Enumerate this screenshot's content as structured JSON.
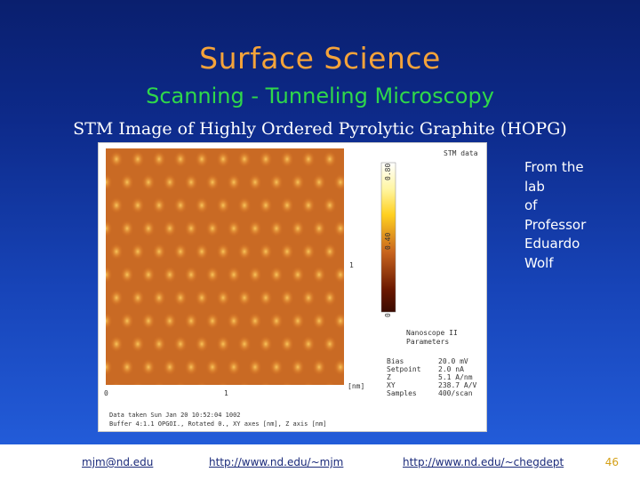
{
  "slide": {
    "title": "Surface Science",
    "subtitle": "Scanning - Tunneling Microscopy",
    "caption": "STM Image of Highly Ordered Pyrolytic Graphite (HOPG)"
  },
  "stm_image": {
    "header_label": "STM data",
    "colorbar_ticks": [
      "0.80",
      "0.40",
      "0"
    ],
    "x_axis_ticks": [
      "0",
      "1",
      "[nm]"
    ],
    "y_axis_tick": "1",
    "instrument": [
      "Nanoscope II",
      "Parameters"
    ],
    "params": [
      {
        "label": "Bias",
        "value": "20.0 mV"
      },
      {
        "label": "Setpoint",
        "value": "2.0 nA"
      },
      {
        "label": "Z",
        "value": "5.1 A/nm"
      },
      {
        "label": "XY",
        "value": "238.7 A/V"
      },
      {
        "label": "Samples",
        "value": "400/scan"
      }
    ],
    "footnote_1": "Data taken Sun Jan 20 10:52:04 1002",
    "footnote_2": "Buffer 4:1.1 OPGOI., Rotated 0., XY axes [nm], Z axis [nm]",
    "colors": {
      "dark": "#3a0a00",
      "mid": "#c8641e",
      "bright": "#ffe840",
      "white": "#ffffff"
    }
  },
  "credit": {
    "lines": [
      "From the",
      "lab",
      "of",
      "Professor",
      "Eduardo",
      "Wolf"
    ]
  },
  "footer": {
    "email": "mjm@nd.edu",
    "link1": "http://www.nd.edu/~mjm",
    "link2": "http://www.nd.edu/~chegdept",
    "page_number": "46"
  }
}
